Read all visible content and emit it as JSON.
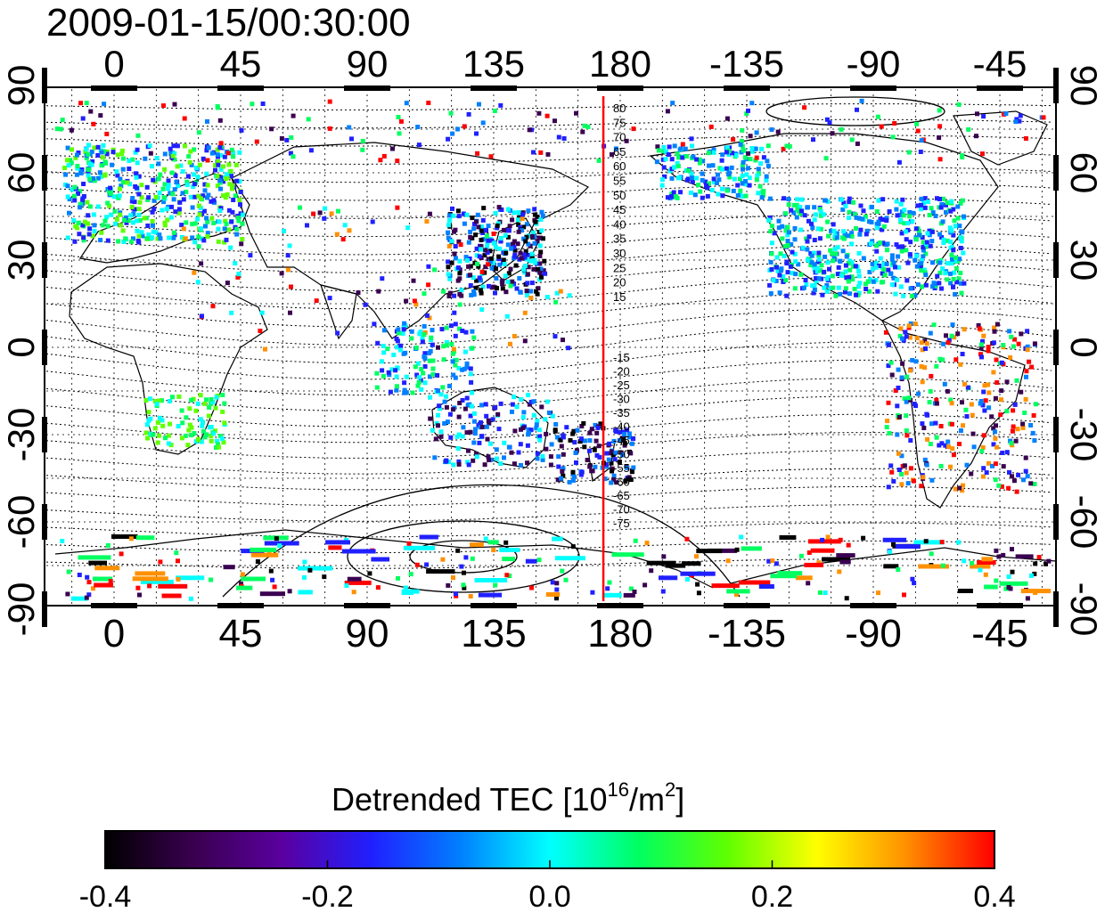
{
  "title": "2009-01-15/00:30:00",
  "map": {
    "lon_ticks": [
      "0",
      "45",
      "90",
      "135",
      "180",
      "-135",
      "-90",
      "-45"
    ],
    "lat_ticks": [
      "90",
      "60",
      "30",
      "0",
      "-30",
      "-60",
      "-90"
    ],
    "meridian_marker_lon": 174,
    "meridian_marker_color": "#ff0000",
    "north_contour_labels": [
      "80",
      "75",
      "70",
      "65",
      "60",
      "55",
      "50",
      "45",
      "40",
      "35",
      "30",
      "25",
      "20",
      "15"
    ],
    "south_contour_labels": [
      "-15",
      "-20",
      "-25",
      "-30",
      "-35",
      "-40",
      "-45",
      "-50",
      "-55",
      "-60",
      "-65",
      "-70",
      "-75"
    ]
  },
  "colorbar": {
    "label_main": "Detrended TEC  [10",
    "label_sup1": "16",
    "label_mid": "/m",
    "label_sup2": "2",
    "label_end": "]",
    "ticks": [
      "-0.4",
      "-0.2",
      "0.0",
      "0.2",
      "0.4"
    ],
    "colors": [
      "#000000",
      "#3a0050",
      "#5a00a0",
      "#2020ff",
      "#0080ff",
      "#00ffff",
      "#00ff60",
      "#60ff00",
      "#ffff00",
      "#ff9000",
      "#ff0000"
    ]
  }
}
